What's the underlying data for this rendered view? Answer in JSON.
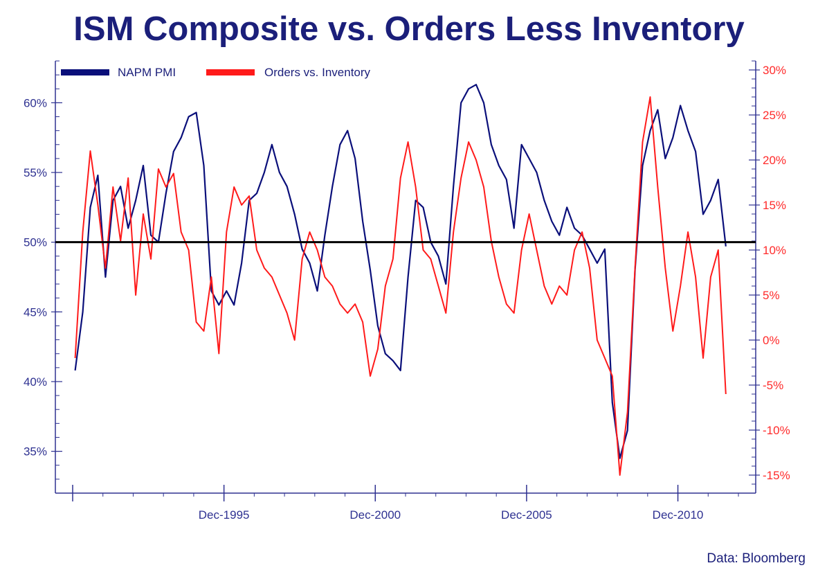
{
  "title": "ISM Composite vs. Orders Less Inventory",
  "source": "Data: Bloomberg",
  "colors": {
    "pmi": "#0a0f7a",
    "orders": "#ff1a1a",
    "axis": "#2e3191",
    "reference": "#000000",
    "left_tick": "#2e3191",
    "right_tick": "#ff2a2a"
  },
  "chart_data": {
    "type": "line",
    "x_axis": {
      "ticks": [
        "Dec-1995",
        "Dec-2000",
        "Dec-2005",
        "Dec-2010"
      ],
      "range": [
        "1990-12",
        "2012-12"
      ]
    },
    "left_axis": {
      "range": [
        32,
        63
      ],
      "ticks": [
        "35%",
        "40%",
        "45%",
        "50%",
        "55%",
        "60%"
      ],
      "tick_values": [
        35,
        40,
        45,
        50,
        55,
        60
      ]
    },
    "right_axis": {
      "range": [
        -17,
        31
      ],
      "ticks": [
        "-15%",
        "-10%",
        "-5%",
        "0%",
        "5%",
        "10%",
        "15%",
        "20%",
        "25%",
        "30%"
      ],
      "tick_values": [
        -15,
        -10,
        -5,
        0,
        5,
        10,
        15,
        20,
        25,
        30
      ]
    },
    "reference_line": {
      "axis": "left",
      "value": 50
    },
    "legend": {
      "placement": "top-left"
    },
    "series": [
      {
        "name": "NAPM PMI",
        "axis": "left",
        "x": [
          "1991-01",
          "1991-04",
          "1991-07",
          "1991-10",
          "1992-01",
          "1992-04",
          "1992-07",
          "1992-10",
          "1993-01",
          "1993-04",
          "1993-07",
          "1993-10",
          "1994-01",
          "1994-04",
          "1994-07",
          "1994-10",
          "1995-01",
          "1995-04",
          "1995-07",
          "1995-10",
          "1996-01",
          "1996-04",
          "1996-07",
          "1996-10",
          "1997-01",
          "1997-04",
          "1997-07",
          "1997-10",
          "1998-01",
          "1998-04",
          "1998-07",
          "1998-10",
          "1999-01",
          "1999-04",
          "1999-07",
          "1999-10",
          "2000-01",
          "2000-04",
          "2000-07",
          "2000-10",
          "2001-01",
          "2001-04",
          "2001-07",
          "2001-10",
          "2002-01",
          "2002-04",
          "2002-07",
          "2002-10",
          "2003-01",
          "2003-04",
          "2003-07",
          "2003-10",
          "2004-01",
          "2004-04",
          "2004-07",
          "2004-10",
          "2005-01",
          "2005-04",
          "2005-07",
          "2005-10",
          "2006-01",
          "2006-04",
          "2006-07",
          "2006-10",
          "2007-01",
          "2007-04",
          "2007-07",
          "2007-10",
          "2008-01",
          "2008-04",
          "2008-07",
          "2008-10",
          "2009-01",
          "2009-04",
          "2009-07",
          "2009-10",
          "2010-01",
          "2010-04",
          "2010-07",
          "2010-10",
          "2011-01",
          "2011-04",
          "2011-07",
          "2011-10",
          "2012-01",
          "2012-04",
          "2012-07"
        ],
        "values": [
          40.8,
          45.0,
          52.5,
          54.8,
          47.5,
          53.0,
          54.0,
          51.0,
          53.0,
          55.5,
          50.5,
          50.0,
          53.5,
          56.5,
          57.5,
          59.0,
          59.3,
          55.5,
          46.5,
          45.5,
          46.5,
          45.5,
          48.5,
          53.0,
          53.5,
          55.0,
          57.0,
          55.0,
          54.0,
          52.0,
          49.5,
          48.5,
          46.5,
          50.5,
          54.0,
          57.0,
          58.0,
          56.0,
          51.5,
          48.0,
          44.0,
          42.0,
          41.5,
          40.8,
          47.5,
          53.0,
          52.5,
          50.0,
          49.0,
          47.0,
          54.0,
          60.0,
          61.0,
          61.3,
          60.0,
          57.0,
          55.5,
          54.5,
          51.0,
          57.0,
          56.0,
          55.0,
          53.0,
          51.5,
          50.5,
          52.5,
          51.0,
          50.5,
          49.5,
          48.5,
          49.5,
          38.5,
          34.5,
          36.5,
          48.0,
          55.5,
          58.0,
          59.5,
          56.0,
          57.5,
          59.8,
          58.0,
          56.5,
          52.0,
          53.0,
          54.5,
          49.7
        ]
      },
      {
        "name": "Orders vs. Inventory",
        "axis": "right",
        "x": [
          "1991-01",
          "1991-04",
          "1991-07",
          "1991-10",
          "1992-01",
          "1992-04",
          "1992-07",
          "1992-10",
          "1993-01",
          "1993-04",
          "1993-07",
          "1993-10",
          "1994-01",
          "1994-04",
          "1994-07",
          "1994-10",
          "1995-01",
          "1995-04",
          "1995-07",
          "1995-10",
          "1996-01",
          "1996-04",
          "1996-07",
          "1996-10",
          "1997-01",
          "1997-04",
          "1997-07",
          "1997-10",
          "1998-01",
          "1998-04",
          "1998-07",
          "1998-10",
          "1999-01",
          "1999-04",
          "1999-07",
          "1999-10",
          "2000-01",
          "2000-04",
          "2000-07",
          "2000-10",
          "2001-01",
          "2001-04",
          "2001-07",
          "2001-10",
          "2002-01",
          "2002-04",
          "2002-07",
          "2002-10",
          "2003-01",
          "2003-04",
          "2003-07",
          "2003-10",
          "2004-01",
          "2004-04",
          "2004-07",
          "2004-10",
          "2005-01",
          "2005-04",
          "2005-07",
          "2005-10",
          "2006-01",
          "2006-04",
          "2006-07",
          "2006-10",
          "2007-01",
          "2007-04",
          "2007-07",
          "2007-10",
          "2008-01",
          "2008-04",
          "2008-07",
          "2008-10",
          "2009-01",
          "2009-04",
          "2009-07",
          "2009-10",
          "2010-01",
          "2010-04",
          "2010-07",
          "2010-10",
          "2011-01",
          "2011-04",
          "2011-07",
          "2011-10",
          "2012-01",
          "2012-04",
          "2012-07"
        ],
        "values": [
          -2.0,
          12.0,
          21.0,
          15.0,
          8.0,
          17.0,
          11.0,
          18.0,
          5.0,
          14.0,
          9.0,
          19.0,
          17.0,
          18.5,
          12.0,
          10.0,
          2.0,
          1.0,
          7.0,
          -1.5,
          12.0,
          17.0,
          15.0,
          16.0,
          10.0,
          8.0,
          7.0,
          5.0,
          3.0,
          0.0,
          9.0,
          12.0,
          10.0,
          7.0,
          6.0,
          4.0,
          3.0,
          4.0,
          2.0,
          -4.0,
          -1.0,
          6.0,
          9.0,
          18.0,
          22.0,
          17.0,
          10.0,
          9.0,
          6.0,
          3.0,
          12.0,
          18.0,
          22.0,
          20.0,
          17.0,
          11.0,
          7.0,
          4.0,
          3.0,
          10.0,
          14.0,
          10.0,
          6.0,
          4.0,
          6.0,
          5.0,
          10.0,
          12.0,
          8.0,
          0.0,
          -2.0,
          -4.0,
          -15.0,
          -8.0,
          8.0,
          22.0,
          27.0,
          17.0,
          8.0,
          1.0,
          6.0,
          12.0,
          7.0,
          -2.0,
          7.0,
          10.0,
          -6.0
        ]
      }
    ]
  }
}
